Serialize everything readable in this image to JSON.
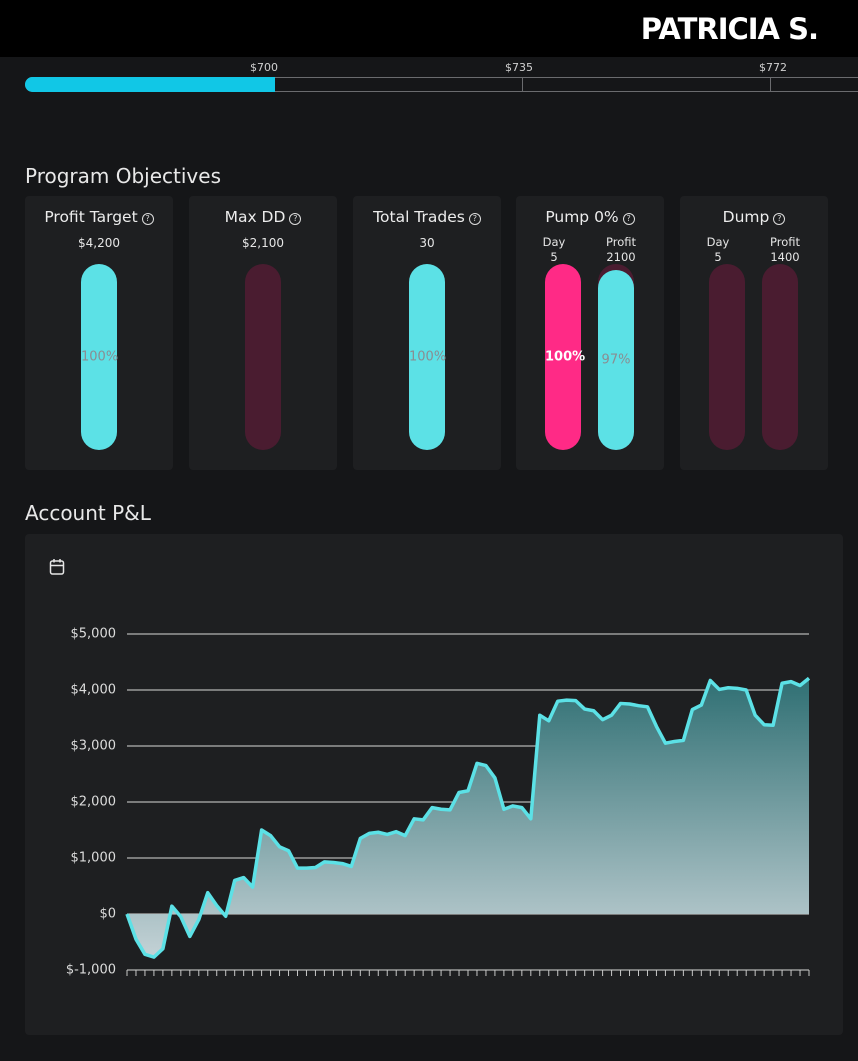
{
  "header": {
    "user_name": "PATRICIA S."
  },
  "progress": {
    "fill_fraction": 0.3,
    "ticks": [
      {
        "label": "$700"
      },
      {
        "label": "$735"
      },
      {
        "label": "$772"
      }
    ]
  },
  "objectives": {
    "title": "Program Objectives",
    "help_glyph": "?",
    "cards": [
      {
        "title": "Profit Target",
        "value": "$4,200",
        "percent": "100%",
        "level": 1.0
      },
      {
        "title": "Max DD",
        "value": "$2,100",
        "percent": "",
        "level": 0
      },
      {
        "title": "Total Trades",
        "value": "30",
        "percent": "100%",
        "level": 1.0
      },
      {
        "title": "Pump 0%",
        "day_label": "Day",
        "day_value": "5",
        "profit_label": "Profit",
        "profit_value": "2100",
        "day_percent": "100%",
        "profit_percent": "97%",
        "day_level": 1.0,
        "profit_level": 0.97
      },
      {
        "title": "Dump",
        "day_label": "Day",
        "day_value": "5",
        "profit_label": "Profit",
        "profit_value": "1400",
        "day_level": 0,
        "profit_level": 0
      }
    ]
  },
  "pnl": {
    "title": "Account P&L",
    "calendar_icon": "calendar-icon"
  },
  "colors": {
    "accent": "#5ce1e6",
    "pink": "#ff2a86",
    "dark_pill": "#4a1c30",
    "progress": "#11c7e6"
  },
  "chart_data": {
    "type": "area",
    "ylim": [
      -1000,
      5000
    ],
    "y_ticks": [
      "$5,000",
      "$4,000",
      "$3,000",
      "$2,000",
      "$1,000",
      "$0",
      "$-1,000"
    ],
    "y_tick_values": [
      5000,
      4000,
      3000,
      2000,
      1000,
      0,
      -1000
    ],
    "values": [
      0,
      -450,
      -720,
      -770,
      -620,
      140,
      -50,
      -400,
      -100,
      380,
      150,
      -40,
      600,
      650,
      480,
      1500,
      1400,
      1200,
      1130,
      820,
      820,
      830,
      930,
      920,
      900,
      850,
      1350,
      1440,
      1460,
      1420,
      1470,
      1400,
      1700,
      1680,
      1900,
      1870,
      1860,
      2170,
      2200,
      2690,
      2650,
      2430,
      1870,
      1930,
      1900,
      1700,
      3550,
      3450,
      3800,
      3820,
      3810,
      3660,
      3630,
      3470,
      3550,
      3760,
      3750,
      3720,
      3700,
      3350,
      3050,
      3080,
      3100,
      3650,
      3730,
      4170,
      4010,
      4040,
      4030,
      4000,
      3550,
      3380,
      3370,
      4120,
      4150,
      4080,
      4210
    ]
  }
}
